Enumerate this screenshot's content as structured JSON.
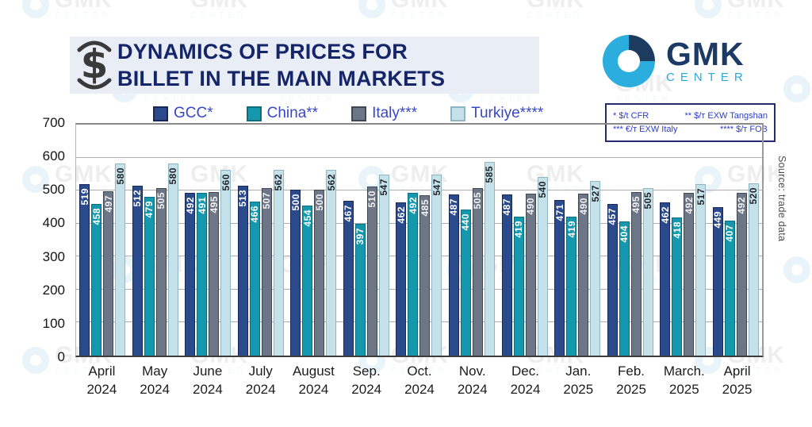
{
  "header": {
    "title_line1": "DYNAMICS OF PRICES FOR",
    "title_line2": "BILLET IN THE MAIN MARKETS"
  },
  "logo": {
    "name": "GMK",
    "subtitle": "CENTER"
  },
  "footnotes": [
    "* $/t CFR",
    "** $/т EXW Tangshan",
    "*** €/т EXW Italy",
    "**** $/т FOB"
  ],
  "source": "Source: trade data",
  "watermark": {
    "text": "GMK",
    "subtext": "CENTER"
  },
  "colors": {
    "banner_bg": "#e8edf6",
    "title_navy": "#152569",
    "legend_text": "#3847c4",
    "logo_navy": "#1c3a64",
    "logo_blue": "#29a9dd"
  },
  "chart_data": {
    "type": "bar",
    "title": "Dynamics of prices for billet in the main markets",
    "categories": [
      "April 2024",
      "May 2024",
      "June 2024",
      "July 2024",
      "August 2024",
      "Sep. 2024",
      "Oct. 2024",
      "Nov. 2024",
      "Dec. 2024",
      "Jan. 2025",
      "Feb. 2025",
      "March. 2025",
      "April 2025"
    ],
    "series": [
      {
        "name": "GCC*",
        "color": "#2b4a8c",
        "border": "#17275a",
        "label_color": "#ffffff",
        "values": [
          519,
          512,
          492,
          513,
          500,
          467,
          462,
          487,
          487,
          471,
          457,
          462,
          449
        ]
      },
      {
        "name": "China**",
        "color": "#1598ad",
        "border": "#0b6e80",
        "label_color": "#ffffff",
        "values": [
          458,
          479,
          491,
          466,
          454,
          397,
          492,
          440,
          419,
          419,
          404,
          418,
          407
        ]
      },
      {
        "name": "Italy***",
        "color": "#6c7687",
        "border": "#3f4654",
        "label_color": "#f2f2f2",
        "values": [
          497,
          505,
          495,
          507,
          500,
          510,
          485,
          505,
          490,
          490,
          495,
          492,
          492
        ]
      },
      {
        "name": "Turkiye****",
        "color": "#c5e2eb",
        "border": "#8fb4c2",
        "label_color": "#23262b",
        "values": [
          580,
          580,
          560,
          562,
          562,
          547,
          547,
          585,
          540,
          527,
          505,
          517,
          520
        ]
      }
    ],
    "ylim": [
      0,
      700
    ],
    "yticks": [
      0,
      100,
      200,
      300,
      400,
      500,
      600,
      700
    ],
    "grid": true,
    "legend_position": "top",
    "units_note": "* $/t CFR, ** $/т EXW Tangshan, *** €/т EXW Italy, **** $/т FOB",
    "source": "trade data"
  }
}
